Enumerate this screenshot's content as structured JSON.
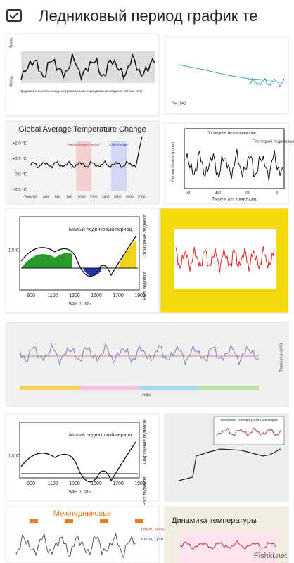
{
  "header": {
    "title": "Ледниковый период график те"
  },
  "results": [
    {
      "texts": [
        "Тепло",
        "Холод",
        "Продолжительность между экстремальными периодами похолодания (60 тыс. лет)"
      ]
    },
    {
      "texts": [
        "Рис. 143."
      ]
    },
    {
      "texts": [
        "Global Average Temperature Change",
        "+1.0 °C",
        "+0.5 °C",
        "0.0 °C",
        "-0.5 °C",
        "Year",
        "200",
        "400",
        "600",
        "800",
        "1000",
        "1200",
        "1400",
        "1600",
        "1800",
        "2000",
        "\"Medieval warm period\"",
        "\"Little Ice age\""
      ]
    },
    {
      "texts": [
        "Последнее межледниковье",
        "Последний ледниковый период",
        "Carbon Dioxide (ppmv)",
        "Тысячи лет тому назад",
        "600",
        "400",
        "200",
        "0"
      ]
    },
    {
      "texts": [
        "1,5°C",
        "Малый ледниковый период",
        "900",
        "1100",
        "1300",
        "1500",
        "1700",
        "1900",
        "годы н. эры",
        "Сокращение ледников",
        "Рост ледников"
      ]
    },
    {
      "texts": []
    },
    {
      "texts": [
        "Годы",
        "Температура (°C)"
      ]
    },
    {
      "texts": [
        "1,5°C",
        "Малый ледниковый период",
        "900",
        "1100",
        "1300",
        "1500",
        "1700",
        "1900",
        "годы н. эры",
        "Сокращение ледников",
        "Рост ледников"
      ]
    },
    {
      "texts": [
        "Колебания температуры в Гренландии"
      ]
    },
    {
      "texts": [
        "Межледниковье",
        "тепло, сыро",
        "холод, сухо"
      ]
    },
    {
      "texts": [
        "Динамика температуры"
      ]
    }
  ],
  "watermark": "Fishki.net"
}
